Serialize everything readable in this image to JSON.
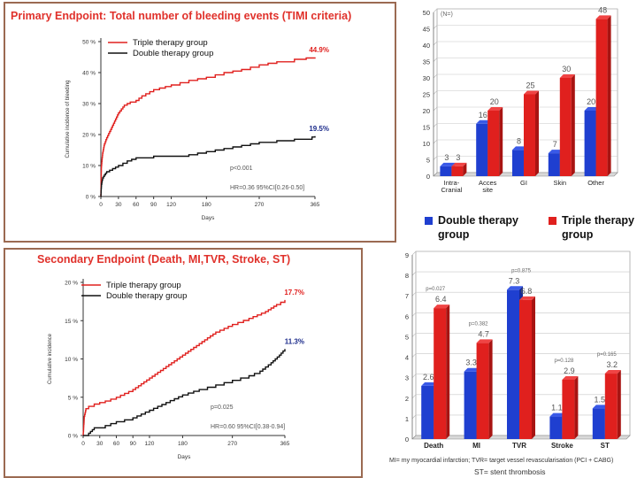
{
  "chart_data": [
    {
      "type": "line",
      "title": "Primary Endpoint: Total number of bleeding events (TIMI criteria)",
      "xlabel": "Days",
      "ylabel": "Cumulative incidence of bleeding",
      "xlim": [
        0,
        365
      ],
      "ylim": [
        0,
        50
      ],
      "xticks": [
        0,
        30,
        60,
        90,
        120,
        180,
        270,
        365
      ],
      "yticks": [
        0,
        10,
        20,
        30,
        40,
        50
      ],
      "ytick_labels": [
        "0 %",
        "10 %",
        "20 %",
        "30 %",
        "40 %",
        "50 %"
      ],
      "legend_position": "top-left",
      "series": [
        {
          "name": "Triple therapy group",
          "color": "#e0201e",
          "end_label": "44.9%",
          "x": [
            0,
            1,
            3,
            6,
            10,
            15,
            20,
            25,
            30,
            40,
            50,
            60,
            70,
            90,
            100,
            120,
            150,
            180,
            210,
            240,
            270,
            300,
            330,
            350,
            365
          ],
          "y": [
            0,
            10,
            14,
            17,
            19,
            21,
            23,
            25,
            27,
            29.5,
            30.5,
            31,
            32.5,
            34.5,
            35,
            36,
            37.5,
            38.5,
            40,
            41,
            42.5,
            43.5,
            44.3,
            44.7,
            44.9
          ]
        },
        {
          "name": "Double therapy group",
          "color": "#111111",
          "end_label": "19.5%",
          "x": [
            0,
            1,
            3,
            6,
            10,
            20,
            30,
            45,
            60,
            90,
            120,
            150,
            180,
            210,
            240,
            270,
            300,
            330,
            360,
            365
          ],
          "y": [
            0,
            4,
            6,
            7,
            8,
            9,
            10,
            11.5,
            12.5,
            13,
            13,
            13.5,
            14.5,
            15.5,
            16.5,
            17.5,
            18,
            18.5,
            19.2,
            19.5
          ]
        }
      ],
      "annotations": [
        "p<0.001",
        "HR=0.36  95%CI[0.26-0.50]"
      ]
    },
    {
      "type": "bar",
      "title": "(N=)",
      "categories": [
        "Intra-Cranial",
        "Acces site",
        "GI",
        "Skin",
        "Other"
      ],
      "category_labels": [
        [
          "Intra-",
          "Cranial"
        ],
        [
          "Acces",
          "site"
        ],
        [
          "GI"
        ],
        [
          "Skin"
        ],
        [
          "Other"
        ]
      ],
      "ylim": [
        0,
        50
      ],
      "yticks": [
        0,
        5,
        10,
        15,
        20,
        25,
        30,
        35,
        40,
        45,
        50
      ],
      "legend_position": "bottom",
      "series": [
        {
          "name": "Double therapy group",
          "color": "#1f3fd0",
          "values": [
            3,
            16,
            8,
            7,
            20
          ]
        },
        {
          "name": "Triple therapy group",
          "color": "#e0201e",
          "values": [
            3,
            20,
            25,
            30,
            48
          ]
        }
      ]
    },
    {
      "type": "line",
      "title": "Secondary Endpoint (Death, MI,TVR, Stroke, ST)",
      "xlabel": "Days",
      "ylabel": "Cumulative incidence",
      "xlim": [
        0,
        365
      ],
      "ylim": [
        0,
        20
      ],
      "xticks": [
        0,
        30,
        60,
        90,
        120,
        180,
        270,
        365
      ],
      "yticks": [
        0,
        5,
        10,
        15,
        20
      ],
      "ytick_labels": [
        "0 %",
        "5 %",
        "10 %",
        "15 %",
        "20 %"
      ],
      "legend_position": "top-left",
      "series": [
        {
          "name": "Triple therapy group",
          "color": "#e0201e",
          "end_label": "17.7%",
          "x": [
            0,
            2,
            5,
            10,
            20,
            40,
            60,
            90,
            120,
            150,
            180,
            210,
            240,
            270,
            300,
            330,
            350,
            365
          ],
          "y": [
            0,
            2.5,
            3.5,
            3.8,
            4.1,
            4.5,
            5,
            6,
            7.5,
            9,
            10.5,
            12,
            13.5,
            14.5,
            15.3,
            16.2,
            17.1,
            17.7
          ]
        },
        {
          "name": "Double therapy group",
          "color": "#111111",
          "end_label": "11.3%",
          "x": [
            0,
            10,
            20,
            40,
            60,
            90,
            120,
            150,
            180,
            210,
            240,
            270,
            300,
            320,
            340,
            355,
            365
          ],
          "y": [
            0,
            0.3,
            1,
            1.3,
            1.8,
            2.3,
            3.3,
            4.3,
            5.3,
            6,
            6.6,
            7.2,
            7.8,
            8.4,
            9.5,
            10.5,
            11.3
          ]
        }
      ],
      "annotations": [
        "p=0.025",
        "HR=0.60  95%CI[0.38-0.94]"
      ]
    },
    {
      "type": "bar",
      "categories": [
        "Death",
        "MI",
        "TVR",
        "Stroke",
        "ST"
      ],
      "ylim": [
        0,
        9
      ],
      "yticks": [
        0,
        1,
        2,
        3,
        4,
        5,
        6,
        7,
        8,
        9
      ],
      "p_values": [
        "p=0.027",
        "p=0.382",
        "p=0.875",
        "p=0.128",
        "p=0.165"
      ],
      "series": [
        {
          "name": "Double therapy group",
          "color": "#1f3fd0",
          "values": [
            2.6,
            3.3,
            7.3,
            1.1,
            1.5
          ]
        },
        {
          "name": "Triple therapy group",
          "color": "#e0201e",
          "values": [
            6.4,
            4.7,
            6.8,
            2.9,
            3.2
          ]
        }
      ],
      "footnotes": [
        "MI= my myocardial infarction; TVR= target vessel revascularisation (PCI + CABG)",
        "ST= stent thrombosis"
      ]
    }
  ]
}
